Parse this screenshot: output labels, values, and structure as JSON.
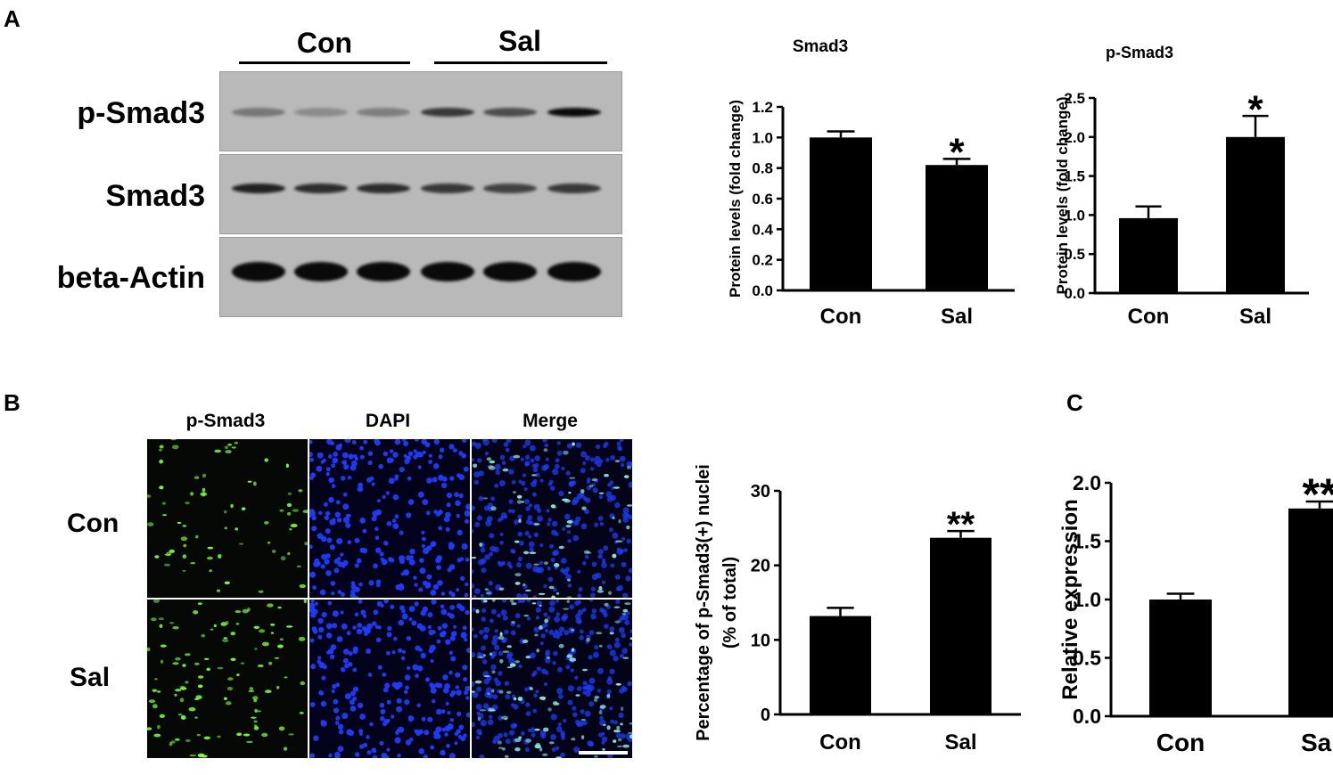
{
  "panels": {
    "a": "A",
    "b": "B",
    "c": "C"
  },
  "blot": {
    "groups": [
      "Con",
      "Sal"
    ],
    "rows": [
      "p-Smad3",
      "Smad3",
      "beta-Actin"
    ],
    "band_intensity": {
      "p-Smad3": [
        0.45,
        0.3,
        0.4,
        0.8,
        0.7,
        1.0
      ],
      "Smad3": [
        0.9,
        0.85,
        0.85,
        0.8,
        0.75,
        0.8
      ],
      "beta-Actin": [
        1,
        1,
        1,
        1,
        1,
        1
      ]
    }
  },
  "micrographs": {
    "columns": [
      "p-Smad3",
      "DAPI",
      "Merge"
    ],
    "rows": [
      "Con",
      "Sal"
    ],
    "colors": {
      "p-Smad3": "#7dff3a",
      "DAPI": "#1f3cff",
      "Merge": "#8fe8e0"
    }
  },
  "chart_data": [
    {
      "type": "bar",
      "title": "Smad3",
      "ylabel": "Protein levels (fold change)",
      "categories": [
        "Con",
        "Sal"
      ],
      "values": [
        1.0,
        0.82
      ],
      "errors": [
        0.04,
        0.04
      ],
      "ylim": [
        0,
        1.2
      ],
      "yticks": [
        "0.0",
        "0.2",
        "0.4",
        "0.6",
        "0.8",
        "1.0",
        "1.2"
      ],
      "annotations": [
        "",
        "*"
      ]
    },
    {
      "type": "bar",
      "title": "p-Smad3",
      "ylabel": "Protein levels (fold change)",
      "categories": [
        "Con",
        "Sal"
      ],
      "values": [
        0.96,
        2.0
      ],
      "errors": [
        0.15,
        0.27
      ],
      "ylim": [
        0,
        2.5
      ],
      "yticks": [
        "0.0",
        "0.5",
        "1.0",
        "1.5",
        "2.0",
        "2.5"
      ],
      "annotations": [
        "",
        "*"
      ]
    },
    {
      "type": "bar",
      "title": "",
      "ylabel": "Percentage of p-Smad3(+) nuclei",
      "ylabel2": "(% of total)",
      "categories": [
        "Con",
        "Sal"
      ],
      "values": [
        13.2,
        23.7
      ],
      "errors": [
        1.1,
        0.9
      ],
      "ylim": [
        0,
        30
      ],
      "yticks": [
        "0",
        "10",
        "20",
        "30"
      ],
      "annotations": [
        "",
        "**"
      ]
    },
    {
      "type": "bar",
      "title": "",
      "ylabel": "Relative expression",
      "categories": [
        "Con",
        "Sal"
      ],
      "values": [
        1.0,
        1.78
      ],
      "errors": [
        0.05,
        0.06
      ],
      "ylim": [
        0,
        2.0
      ],
      "yticks": [
        "0.0",
        "0.5",
        "1.0",
        "1.5",
        "2.0"
      ],
      "annotations": [
        "",
        "**"
      ]
    }
  ]
}
